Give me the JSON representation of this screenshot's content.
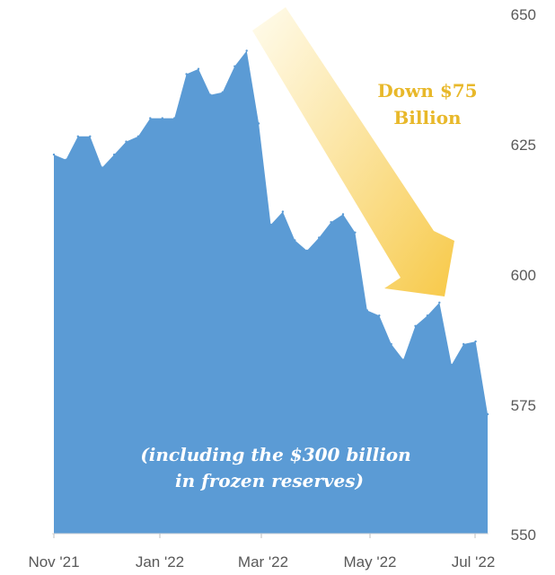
{
  "chart_data": {
    "type": "area",
    "title": "",
    "xlabel": "",
    "ylabel": "",
    "ylim": [
      550,
      650
    ],
    "y_ticks": [
      "650",
      "625",
      "600",
      "575",
      "550"
    ],
    "x_ticks": [
      "Nov '21",
      "Jan '22",
      "Mar '22",
      "May '22",
      "Jul '22"
    ],
    "x": [
      "Nov 5 '21",
      "Nov 12 '21",
      "Nov 19 '21",
      "Nov 26 '21",
      "Dec 3 '21",
      "Dec 10 '21",
      "Dec 17 '21",
      "Dec 24 '21",
      "Dec 31 '21",
      "Jan 7 '22",
      "Jan 14 '22",
      "Jan 21 '22",
      "Jan 28 '22",
      "Feb 4 '22",
      "Feb 11 '22",
      "Feb 18 '22",
      "Feb 25 '22",
      "Mar 4 '22",
      "Mar 11 '22",
      "Mar 18 '22",
      "Mar 25 '22",
      "Apr 1 '22",
      "Apr 8 '22",
      "Apr 15 '22",
      "Apr 22 '22",
      "Apr 29 '22",
      "May 6 '22",
      "May 13 '22",
      "May 20 '22",
      "May 27 '22",
      "Jun 3 '22",
      "Jun 10 '22",
      "Jun 17 '22",
      "Jun 24 '22",
      "Jul 1 '22",
      "Jul 8 '22",
      "Jul 15 '22"
    ],
    "values": [
      623,
      622,
      626.5,
      626.5,
      620.5,
      623,
      625.5,
      626.5,
      630,
      630,
      630,
      638.5,
      639.5,
      634.5,
      635,
      640,
      643,
      629,
      609.5,
      612,
      606.5,
      604.5,
      607,
      610,
      611.5,
      608,
      593,
      592,
      586.5,
      583.5,
      590,
      592,
      594.5,
      582.5,
      586.5,
      587,
      573
    ],
    "area_color": "#5B9BD5",
    "arrow_color": "#F7C948",
    "callout_color": "#E8B82A",
    "annotations": {
      "callout_line1": "Down $75",
      "callout_line2": "Billion",
      "note_line1": "(including the $300 billion",
      "note_line2": "in frozen reserves)"
    }
  }
}
